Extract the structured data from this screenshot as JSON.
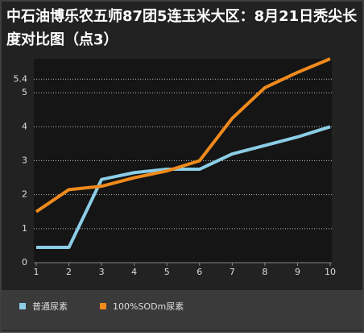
{
  "chart_data": {
    "type": "line",
    "title": "中石油博乐农五师87团5连玉米大区：8月21日秃尖长度对比图（点3）",
    "x": [
      1,
      2,
      3,
      4,
      5,
      6,
      7,
      8,
      9,
      10
    ],
    "xlim": [
      1,
      10
    ],
    "xticks": [
      1,
      2,
      3,
      4,
      5,
      6,
      7,
      8,
      9,
      10
    ],
    "ylim": [
      0,
      6
    ],
    "yticks": [
      0,
      1,
      2,
      3,
      4,
      5,
      5.4
    ],
    "grid": true,
    "legend": "bottom",
    "series": [
      {
        "name": "普通尿素",
        "color": "#8ccde6",
        "values": [
          0.45,
          0.45,
          2.45,
          2.65,
          2.75,
          2.75,
          3.2,
          3.45,
          3.7,
          4.0
        ]
      },
      {
        "name": "100%SODm尿素",
        "color": "#f08a1c",
        "values": [
          1.5,
          2.15,
          2.25,
          2.5,
          2.7,
          3.0,
          4.25,
          5.15,
          5.6,
          6.0
        ]
      }
    ]
  }
}
